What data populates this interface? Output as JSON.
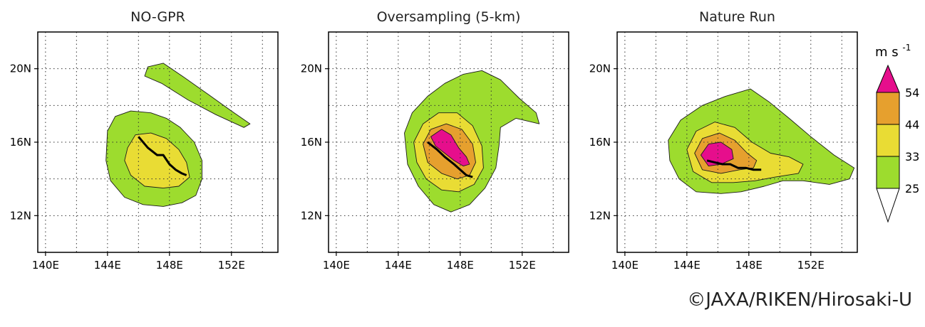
{
  "chart_data": [
    {
      "type": "heatmap",
      "title": "NO-GPR",
      "xlim": [
        139.5,
        155.0
      ],
      "ylim": [
        10.0,
        22.0
      ],
      "xticks": [
        "140E",
        "144E",
        "148E",
        "152E"
      ],
      "xtick_values": [
        140,
        144,
        148,
        152
      ],
      "yticks": [
        "12N",
        "16N",
        "20N"
      ],
      "ytick_values": [
        12,
        16,
        20
      ],
      "grid": "dotted",
      "wind_levels": [
        25,
        33,
        44,
        54
      ],
      "track": [
        [
          146.0,
          16.3
        ],
        [
          146.6,
          15.7
        ],
        [
          147.2,
          15.3
        ],
        [
          147.6,
          15.3
        ],
        [
          148.0,
          14.8
        ],
        [
          148.4,
          14.5
        ],
        [
          148.8,
          14.3
        ],
        [
          149.1,
          14.2
        ]
      ]
    },
    {
      "type": "heatmap",
      "title": "Oversampling (5-km)",
      "xlim": [
        139.5,
        155.0
      ],
      "ylim": [
        10.0,
        22.0
      ],
      "xticks": [
        "140E",
        "144E",
        "148E",
        "152E"
      ],
      "xtick_values": [
        140,
        144,
        148,
        152
      ],
      "yticks": [
        "12N",
        "16N",
        "20N"
      ],
      "ytick_values": [
        12,
        16,
        20
      ],
      "grid": "dotted",
      "wind_levels": [
        25,
        33,
        44,
        54
      ],
      "track": [
        [
          145.9,
          16.0
        ],
        [
          146.5,
          15.6
        ],
        [
          147.0,
          15.2
        ],
        [
          147.6,
          14.8
        ],
        [
          148.0,
          14.5
        ],
        [
          148.4,
          14.2
        ],
        [
          148.8,
          14.1
        ]
      ]
    },
    {
      "type": "heatmap",
      "title": "Nature Run",
      "xlim": [
        139.5,
        155.0
      ],
      "ylim": [
        10.0,
        22.0
      ],
      "xticks": [
        "140E",
        "144E",
        "148E",
        "152E"
      ],
      "xtick_values": [
        140,
        144,
        148,
        152
      ],
      "yticks": [
        "12N",
        "16N",
        "20N"
      ],
      "ytick_values": [
        12,
        16,
        20
      ],
      "grid": "dotted",
      "wind_levels": [
        25,
        33,
        44,
        54
      ],
      "track": [
        [
          145.3,
          15.0
        ],
        [
          145.8,
          14.9
        ],
        [
          146.3,
          14.8
        ],
        [
          146.8,
          14.8
        ],
        [
          147.3,
          14.6
        ],
        [
          147.8,
          14.6
        ],
        [
          148.3,
          14.5
        ],
        [
          148.8,
          14.5
        ]
      ]
    }
  ],
  "colorbar": {
    "unit_base": "m s",
    "unit_exp": "-1",
    "labels": [
      "54",
      "44",
      "33",
      "25"
    ],
    "colors": [
      "#e60e8c",
      "#e6a02e",
      "#e9dc34",
      "#9ddc2e",
      "#ffffff"
    ]
  },
  "credit": "©JAXA/RIKEN/Hirosaki-U"
}
